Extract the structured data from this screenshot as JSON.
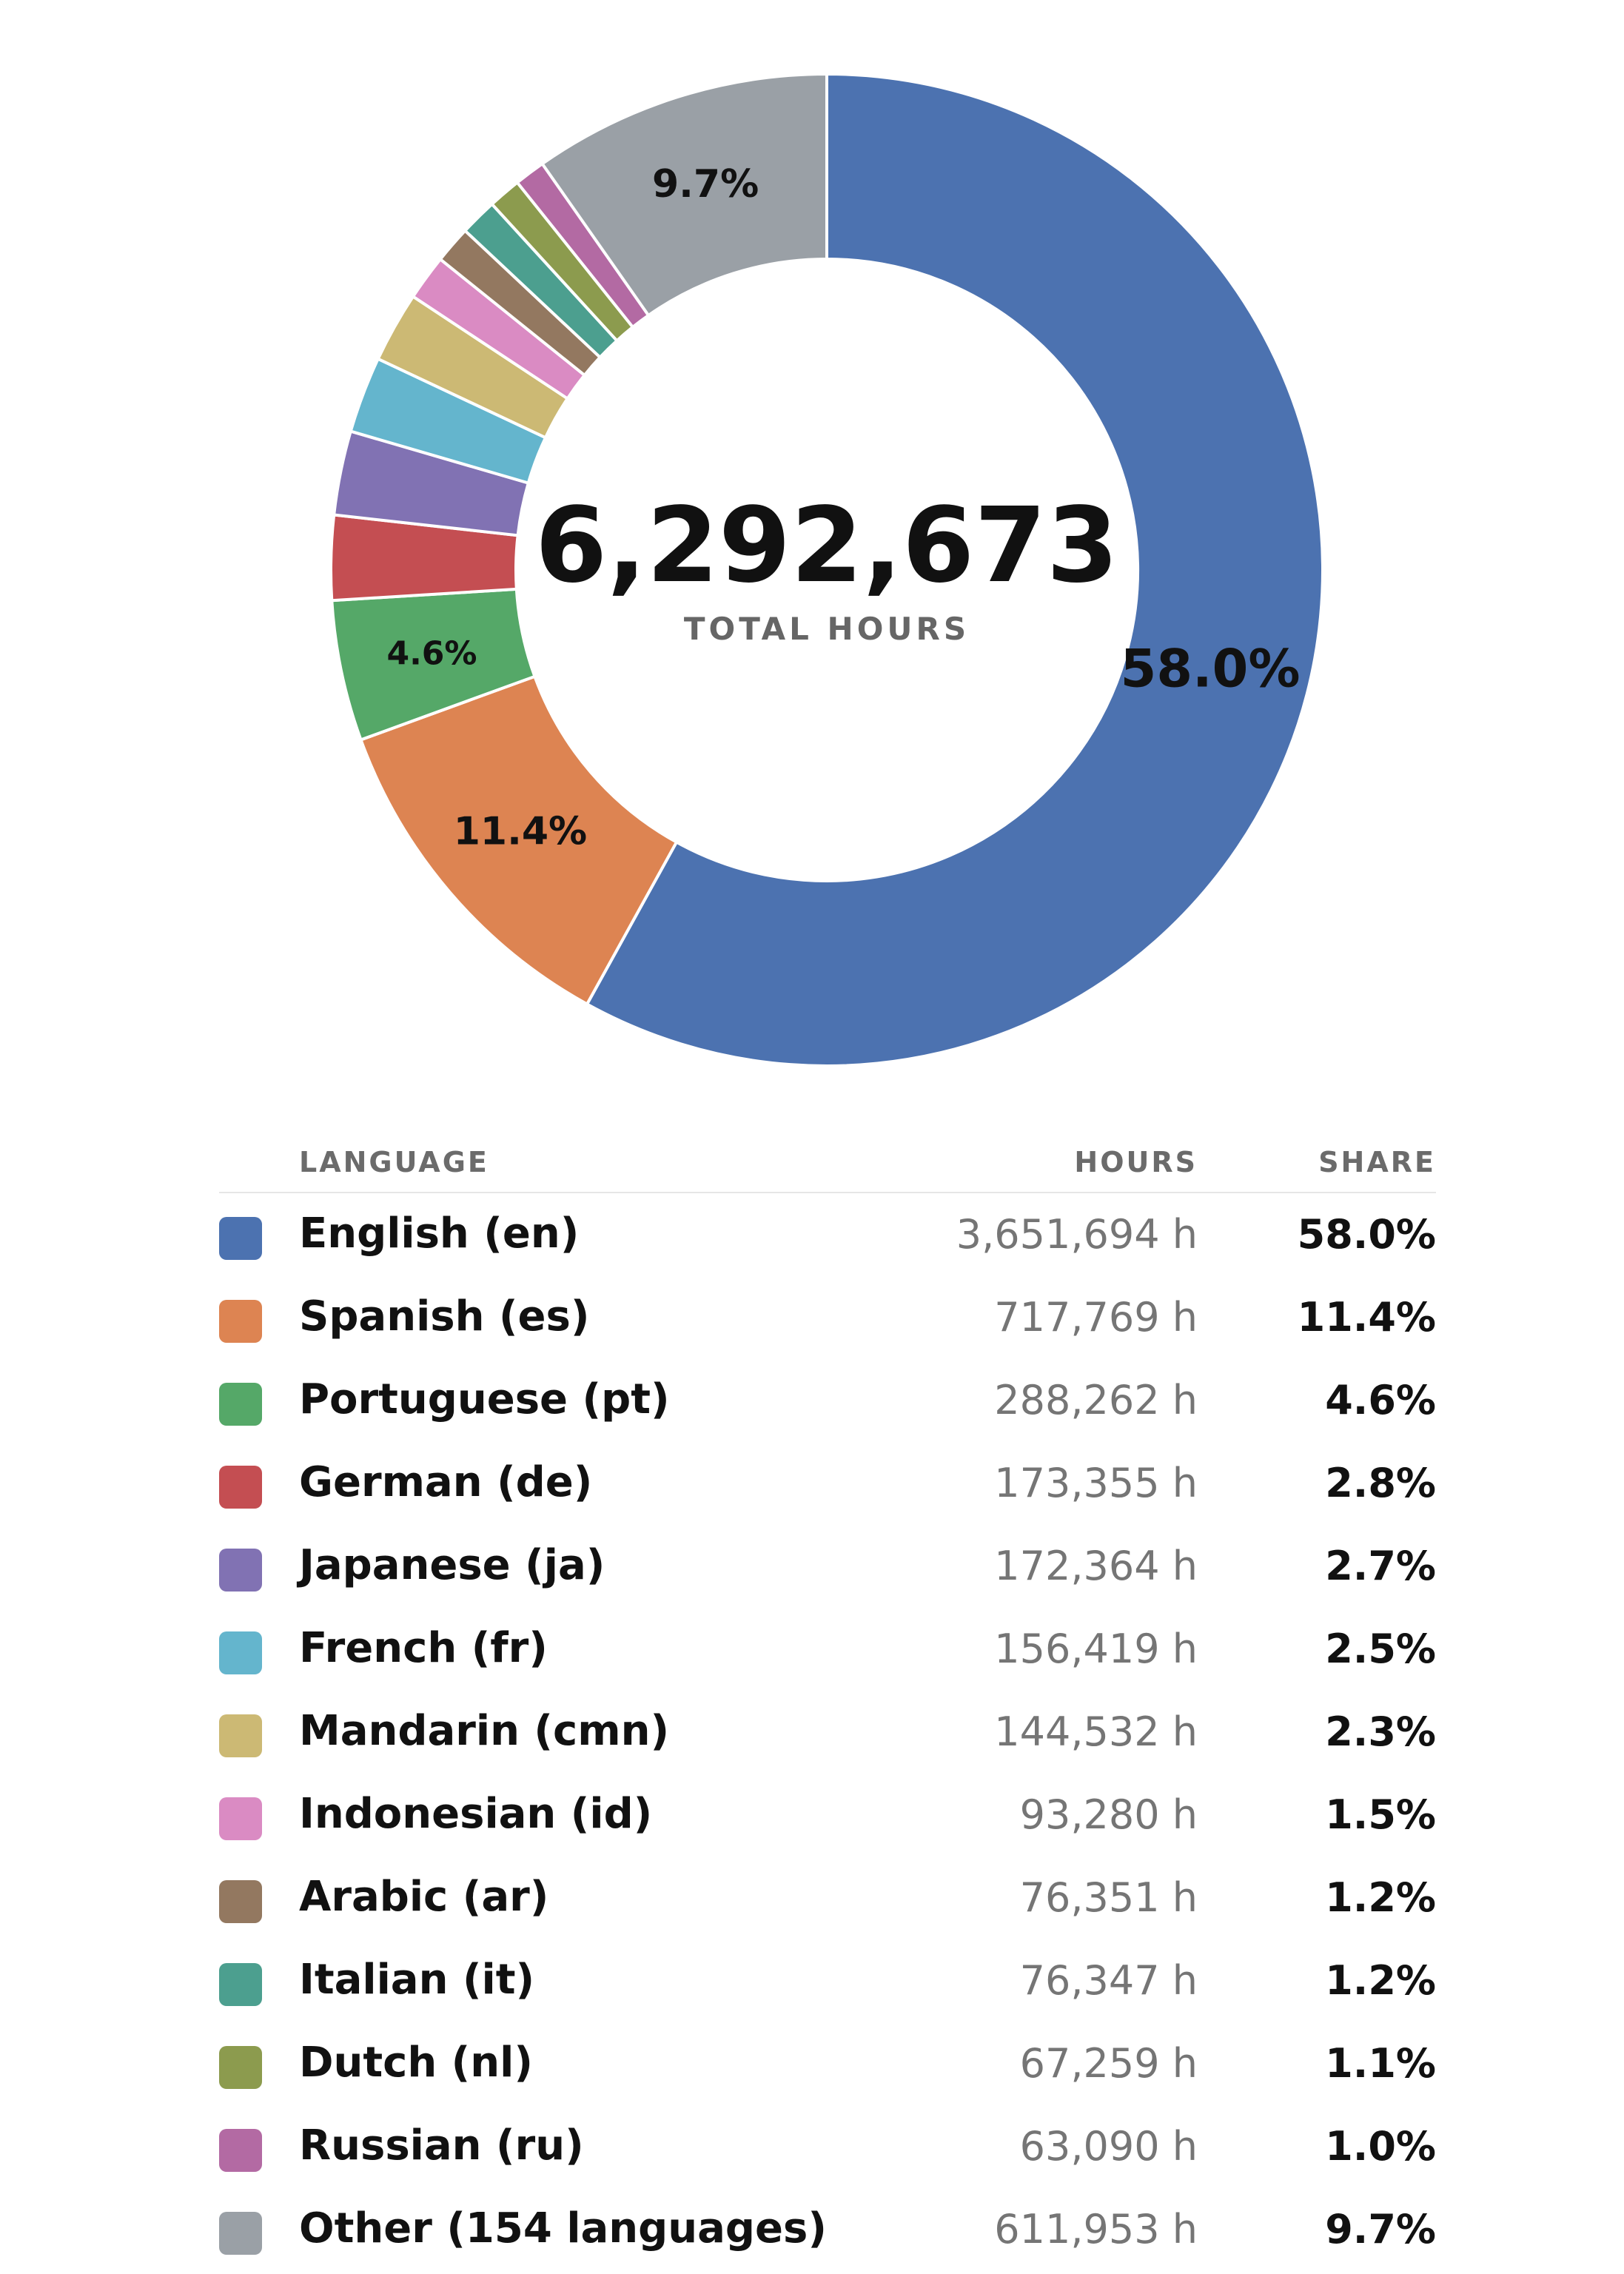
{
  "chart_data": {
    "type": "pie",
    "variant": "donut",
    "center_value": "6,292,673",
    "center_caption": "TOTAL HOURS",
    "columns": {
      "language": "LANGUAGE",
      "hours": "HOURS",
      "share": "SHARE"
    },
    "slices": [
      {
        "label": "English (en)",
        "hours": 3651694,
        "hours_text": "3,651,694 h",
        "share": 58.0,
        "share_text": "58.0%",
        "color": "#4c72b0",
        "show_label": true
      },
      {
        "label": "Spanish (es)",
        "hours": 717769,
        "hours_text": "717,769 h",
        "share": 11.4,
        "share_text": "11.4%",
        "color": "#dd8452",
        "show_label": true
      },
      {
        "label": "Portuguese (pt)",
        "hours": 288262,
        "hours_text": "288,262 h",
        "share": 4.6,
        "share_text": "4.6%",
        "color": "#55a868",
        "show_label": true
      },
      {
        "label": "German (de)",
        "hours": 173355,
        "hours_text": "173,355 h",
        "share": 2.8,
        "share_text": "2.8%",
        "color": "#c44e52",
        "show_label": false
      },
      {
        "label": "Japanese (ja)",
        "hours": 172364,
        "hours_text": "172,364 h",
        "share": 2.7,
        "share_text": "2.7%",
        "color": "#8172b3",
        "show_label": false
      },
      {
        "label": "French (fr)",
        "hours": 156419,
        "hours_text": "156,419 h",
        "share": 2.5,
        "share_text": "2.5%",
        "color": "#64b5cd",
        "show_label": false
      },
      {
        "label": "Mandarin (cmn)",
        "hours": 144532,
        "hours_text": "144,532 h",
        "share": 2.3,
        "share_text": "2.3%",
        "color": "#ccb974",
        "show_label": false
      },
      {
        "label": "Indonesian (id)",
        "hours": 93280,
        "hours_text": "93,280 h",
        "share": 1.5,
        "share_text": "1.5%",
        "color": "#da8bc3",
        "show_label": false
      },
      {
        "label": "Arabic (ar)",
        "hours": 76351,
        "hours_text": "76,351 h",
        "share": 1.2,
        "share_text": "1.2%",
        "color": "#937860",
        "show_label": false
      },
      {
        "label": "Italian (it)",
        "hours": 76347,
        "hours_text": "76,347 h",
        "share": 1.2,
        "share_text": "1.2%",
        "color": "#4c9f8f",
        "show_label": false
      },
      {
        "label": "Dutch (nl)",
        "hours": 67259,
        "hours_text": "67,259 h",
        "share": 1.1,
        "share_text": "1.1%",
        "color": "#8c9b4e",
        "show_label": false
      },
      {
        "label": "Russian (ru)",
        "hours": 63090,
        "hours_text": "63,090 h",
        "share": 1.0,
        "share_text": "1.0%",
        "color": "#b36aa3",
        "show_label": false
      },
      {
        "label": "Other (154 languages)",
        "hours": 611953,
        "hours_text": "611,953 h",
        "share": 9.7,
        "share_text": "9.7%",
        "color": "#9aa0a6",
        "show_label": true
      }
    ]
  }
}
